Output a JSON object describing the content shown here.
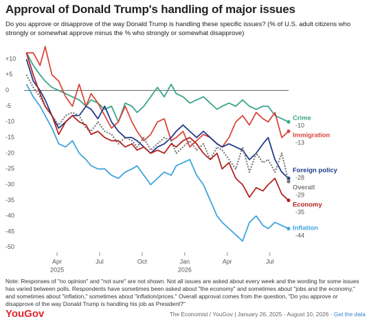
{
  "chart_data": {
    "type": "line",
    "title": "Approval of Donald Trump's handling of major issues",
    "subtitle": "Do you approve or disapprove of the way Donald Trump is handling these specific issues? (% of U.S. adult citizens who strongly or somewhat approve minus the % who strongly or somewhat disapprove)",
    "x": [
      2025.07,
      2025.11,
      2025.15,
      2025.18,
      2025.22,
      2025.26,
      2025.3,
      2025.34,
      2025.38,
      2025.42,
      2025.45,
      2025.49,
      2025.53,
      2025.57,
      2025.61,
      2025.65,
      2025.69,
      2025.72,
      2025.76,
      2025.8,
      2025.84,
      2025.88,
      2025.92,
      2025.95,
      2025.99,
      2026.03,
      2026.07,
      2026.11,
      2026.15,
      2026.19,
      2026.22,
      2026.26,
      2026.3,
      2026.34,
      2026.38,
      2026.42,
      2026.46,
      2026.49,
      2026.53,
      2026.57,
      2026.61
    ],
    "series": [
      {
        "name": "Crime",
        "color": "#3aa58a",
        "values": [
          12,
          8,
          5,
          3,
          1,
          0,
          -1,
          -2,
          -3,
          -5,
          -3,
          -4,
          -6,
          -5,
          -10,
          -4,
          -5,
          -7,
          -5,
          -2,
          1,
          -2,
          2,
          -1,
          -2,
          -4,
          -3,
          -2,
          -4,
          -6,
          -5,
          -4,
          -5,
          -3,
          -5,
          -6,
          -5,
          -5,
          -8,
          -9,
          -10
        ]
      },
      {
        "name": "Immigration",
        "color": "#d9463b",
        "values": [
          12,
          12,
          8,
          14,
          5,
          3,
          -2,
          -5,
          2,
          -5,
          -1,
          -4,
          -8,
          -12,
          -10,
          -5,
          -10,
          -13,
          -16,
          -14,
          -10,
          -9,
          -16,
          -15,
          -13,
          -18,
          -16,
          -14,
          -15,
          -17,
          -18,
          -15,
          -10,
          -8,
          -11,
          -7,
          -9,
          -10,
          -7,
          -15,
          -13
        ]
      },
      {
        "name": "Foreign policy",
        "color": "#1f3a8a",
        "values": [
          10,
          3,
          0,
          -3,
          -8,
          -12,
          -10,
          -8,
          -8,
          -5,
          -6,
          -9,
          -5,
          -10,
          -13,
          -15,
          -15,
          -16,
          -18,
          -20,
          -18,
          -17,
          -15,
          -13,
          -11,
          -13,
          -15,
          -13,
          -15,
          -17,
          -18,
          -17,
          -18,
          -19,
          -22,
          -20,
          -17,
          -15,
          -22,
          -26,
          -28
        ]
      },
      {
        "name": "Overall",
        "color": "#777777",
        "dotted": true,
        "values": [
          5,
          1,
          -2,
          -5,
          -8,
          -11,
          -8,
          -7,
          -8,
          -12,
          -13,
          -10,
          -13,
          -14,
          -17,
          -15,
          -16,
          -18,
          -15,
          -19,
          -17,
          -15,
          -16,
          -20,
          -18,
          -16,
          -19,
          -17,
          -22,
          -18,
          -19,
          -22,
          -25,
          -18,
          -26,
          -20,
          -23,
          -22,
          -26,
          -20,
          -29
        ]
      },
      {
        "name": "Economy",
        "color": "#b2231f",
        "values": [
          12,
          5,
          -1,
          -5,
          -8,
          -14,
          -10,
          -8,
          -10,
          -11,
          -14,
          -13,
          -15,
          -16,
          -16,
          -18,
          -17,
          -19,
          -18,
          -20,
          -19,
          -20,
          -17,
          -18,
          -16,
          -15,
          -17,
          -20,
          -22,
          -20,
          -25,
          -23,
          -28,
          -30,
          -34,
          -31,
          -32,
          -30,
          -28,
          -33,
          -35
        ]
      },
      {
        "name": "Inflation",
        "color": "#3ea4dc",
        "values": [
          2,
          -2,
          -5,
          -8,
          -12,
          -17,
          -18,
          -16,
          -20,
          -22,
          -24,
          -25,
          -25,
          -27,
          -28,
          -26,
          -25,
          -24,
          -27,
          -30,
          -28,
          -26,
          -27,
          -24,
          -23,
          -22,
          -27,
          -30,
          -35,
          -40,
          -42,
          -44,
          -46,
          -48,
          -42,
          -40,
          -43,
          -44,
          -42,
          -43,
          -44
        ]
      }
    ],
    "xlim": [
      2025.056,
      2026.61
    ],
    "xticks": [
      {
        "value": 2025.25,
        "label": "Apr"
      },
      {
        "value": 2025.5,
        "label": "Jul"
      },
      {
        "value": 2025.75,
        "label": "Oct"
      },
      {
        "value": 2026.0,
        "label": "Jan"
      },
      {
        "value": 2026.25,
        "label": "Apr"
      },
      {
        "value": 2026.5,
        "label": "Jul"
      }
    ],
    "xtick_years": [
      {
        "value": 2025.25,
        "label": "2025"
      },
      {
        "value": 2026.0,
        "label": "2026"
      }
    ],
    "ylim": [
      -52,
      13.5
    ],
    "yticks": [
      {
        "value": 10,
        "label": "+10"
      },
      {
        "value": 5,
        "label": "+5"
      },
      0,
      -5,
      -10,
      -15,
      -20,
      -25,
      -30,
      -35,
      -40,
      -45,
      -50
    ],
    "zero_line": true,
    "note": "Note: Responses of \"no opinion\" and \"not sure\" are not shown. Not all issues are asked about every week and the wording for some issues has varied between polls. Respondents have sometimes been asked about \"the economy\" and sometimes about \"jobs and the economy,\" and sometimes about \"inflation,\" sometimes about \"inflation/prices.\" Overall approval comes from the question, \"Do you approve or disapprove of the way Donald Trump is handling his job as President?\"",
    "brand": "YouGov",
    "source": "The Economist / YouGov | January 26, 2025 - August 10, 2026 ·",
    "link": "Get the data"
  }
}
